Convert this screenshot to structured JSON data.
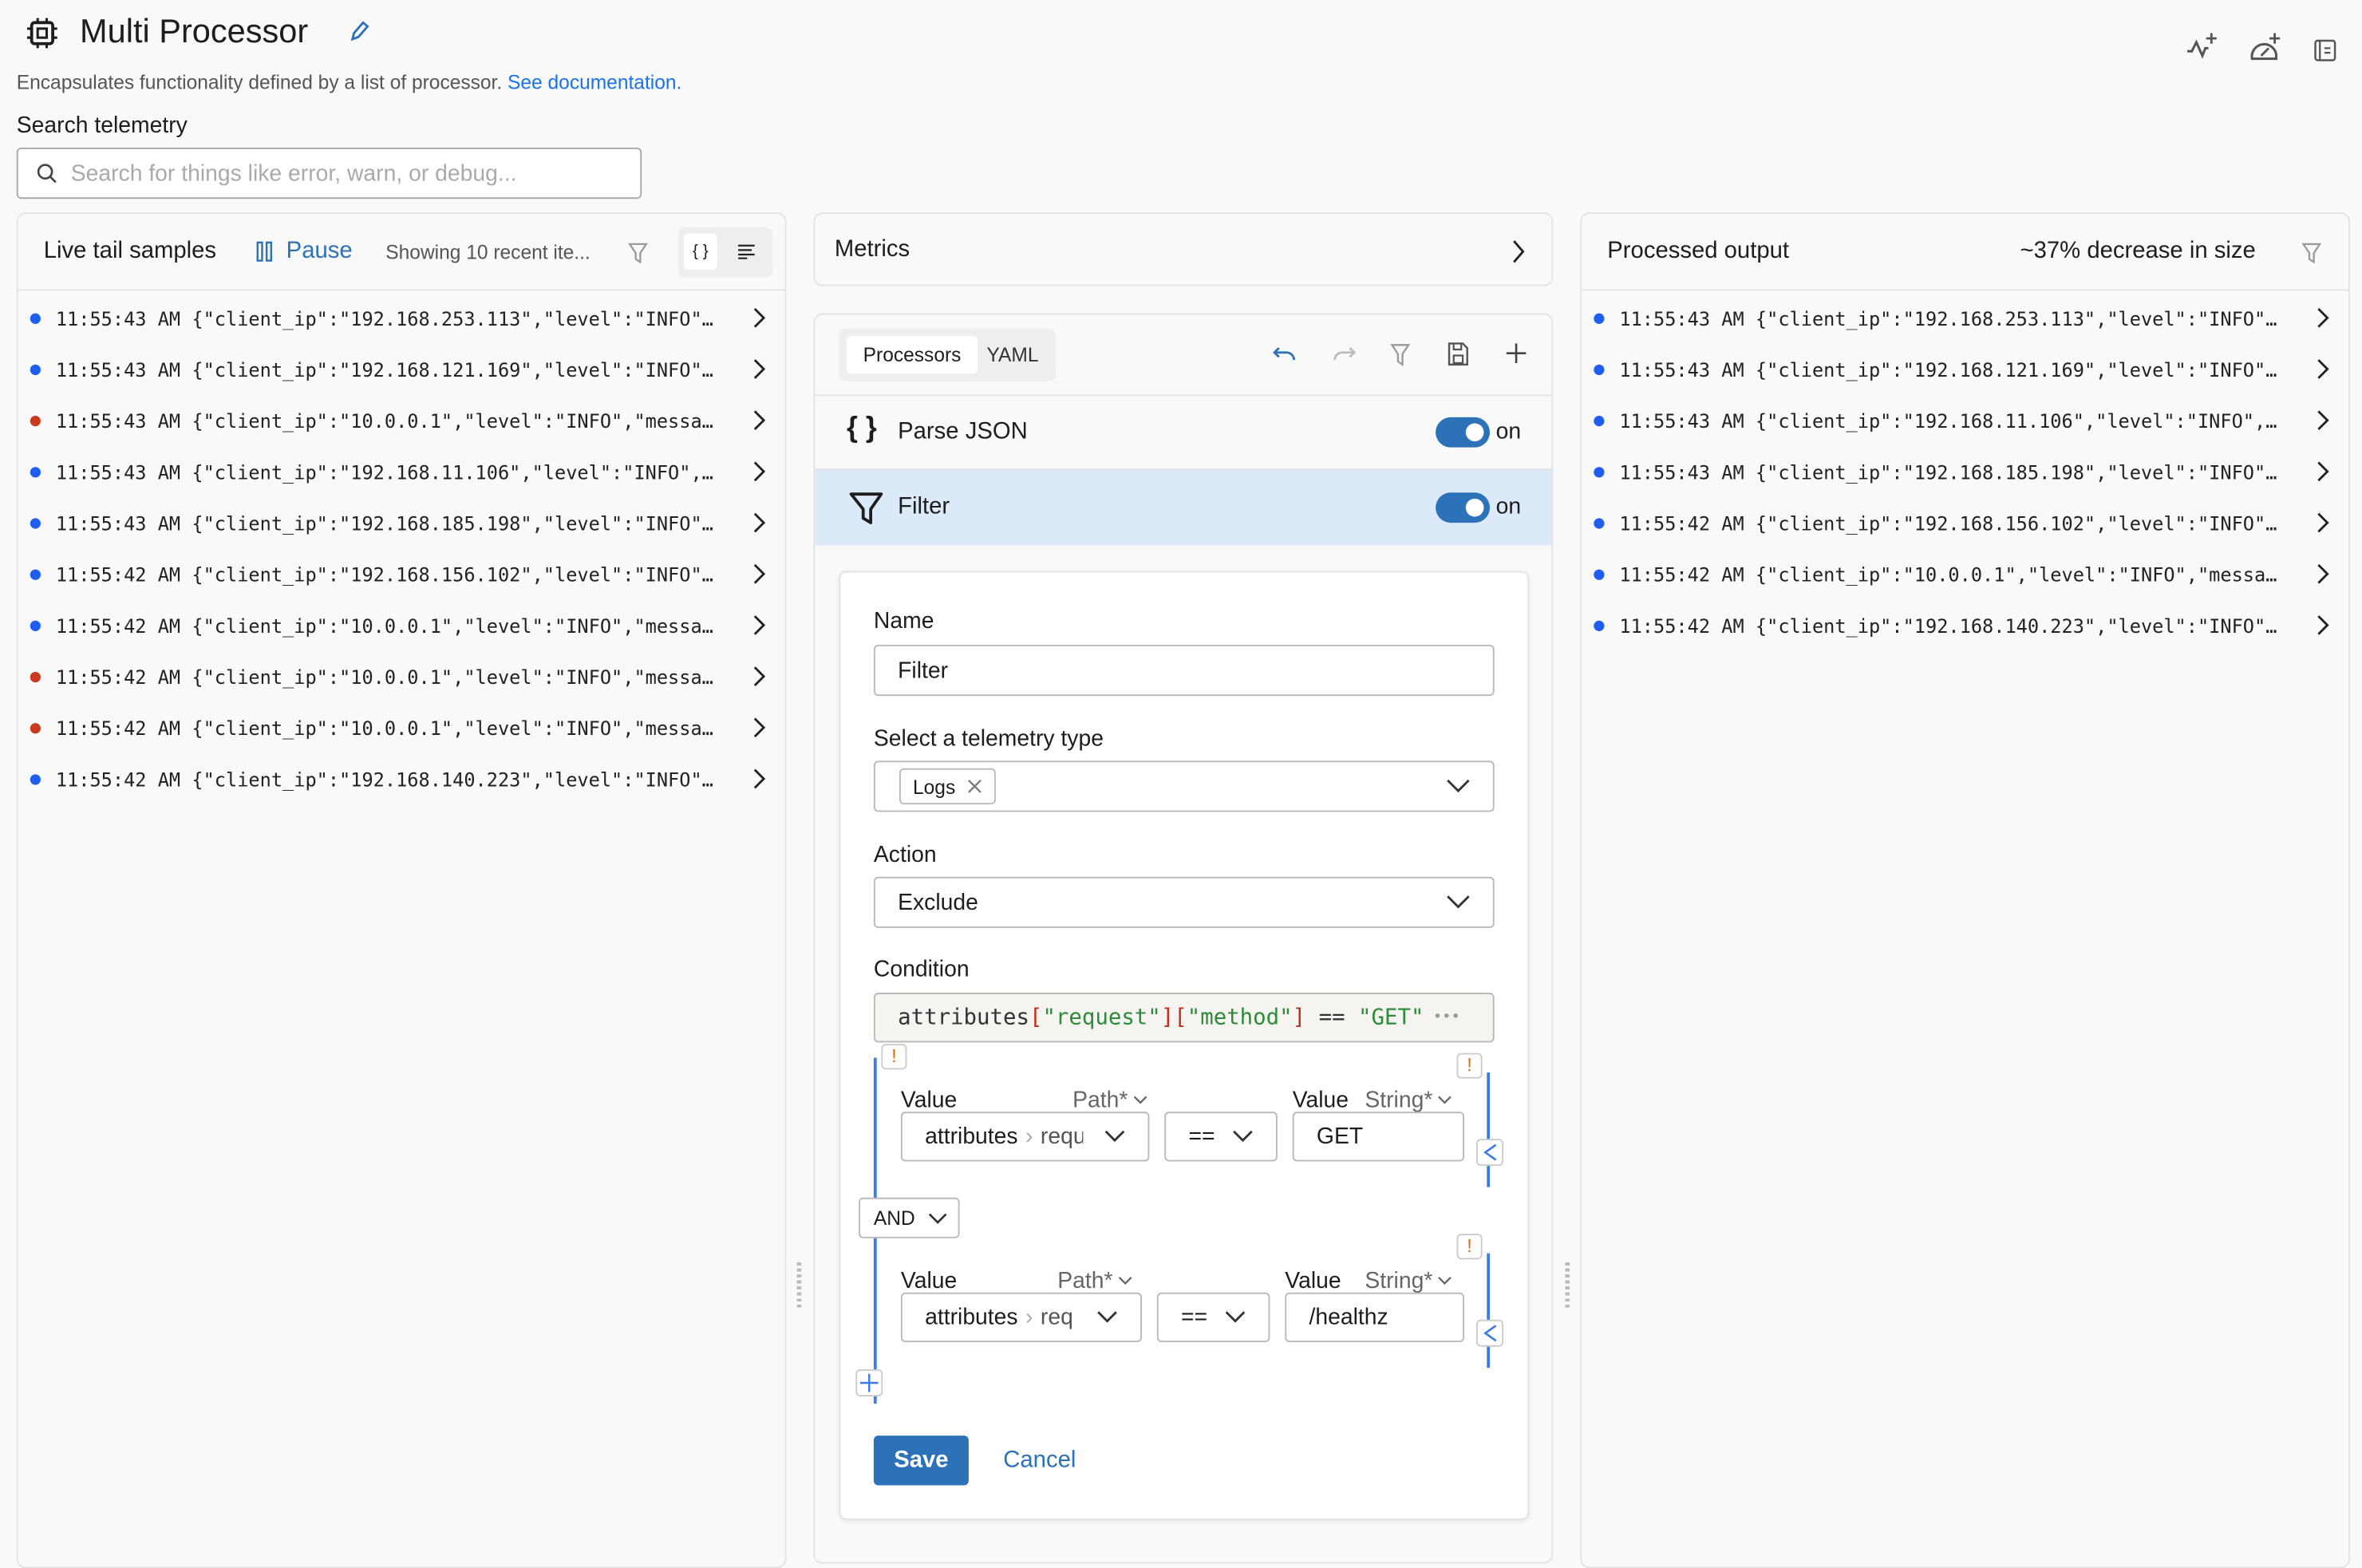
{
  "header": {
    "title": "Multi Processor",
    "description": "Encapsulates functionality defined by a list of processor.",
    "doc_link": "See documentation.",
    "icons": [
      "cpu-icon",
      "edit-pencil-icon",
      "add-activity-icon",
      "add-gauge-icon",
      "docs-book-icon"
    ]
  },
  "search": {
    "label": "Search telemetry",
    "placeholder": "Search for things like error, warn, or debug..."
  },
  "live_tail": {
    "title": "Live tail samples",
    "pause_label": "Pause",
    "showing": "Showing 10 recent ite...",
    "rows": [
      {
        "time": "11:55:43 AM",
        "text": "{\"client_ip\":\"192.168.253.113\",\"level\":\"INFO\"…",
        "status": "blue"
      },
      {
        "time": "11:55:43 AM",
        "text": "{\"client_ip\":\"192.168.121.169\",\"level\":\"INFO\"…",
        "status": "blue"
      },
      {
        "time": "11:55:43 AM",
        "text": "{\"client_ip\":\"10.0.0.1\",\"level\":\"INFO\",\"messa…",
        "status": "red"
      },
      {
        "time": "11:55:43 AM",
        "text": "{\"client_ip\":\"192.168.11.106\",\"level\":\"INFO\",…",
        "status": "blue"
      },
      {
        "time": "11:55:43 AM",
        "text": "{\"client_ip\":\"192.168.185.198\",\"level\":\"INFO\"…",
        "status": "blue"
      },
      {
        "time": "11:55:42 AM",
        "text": "{\"client_ip\":\"192.168.156.102\",\"level\":\"INFO\"…",
        "status": "blue"
      },
      {
        "time": "11:55:42 AM",
        "text": "{\"client_ip\":\"10.0.0.1\",\"level\":\"INFO\",\"messa…",
        "status": "blue"
      },
      {
        "time": "11:55:42 AM",
        "text": "{\"client_ip\":\"10.0.0.1\",\"level\":\"INFO\",\"messa…",
        "status": "red"
      },
      {
        "time": "11:55:42 AM",
        "text": "{\"client_ip\":\"10.0.0.1\",\"level\":\"INFO\",\"messa…",
        "status": "red"
      },
      {
        "time": "11:55:42 AM",
        "text": "{\"client_ip\":\"192.168.140.223\",\"level\":\"INFO\"…",
        "status": "blue"
      }
    ]
  },
  "metrics": {
    "label": "Metrics"
  },
  "processors": {
    "tabs": [
      "Processors",
      "YAML"
    ],
    "active_tab": "Processors",
    "items": [
      {
        "name": "Parse JSON",
        "toggle": "on",
        "enabled": true
      },
      {
        "name": "Filter",
        "toggle": "on",
        "enabled": true,
        "selected": true
      }
    ]
  },
  "filter_form": {
    "name_label": "Name",
    "name_value": "Filter",
    "telemetry_label": "Select a telemetry type",
    "telemetry_tag": "Logs",
    "action_label": "Action",
    "action_value": "Exclude",
    "condition_label": "Condition",
    "condition_code": {
      "p1": "attributes",
      "b1": "[",
      "s1": "\"request\"",
      "b2": "][",
      "s2": "\"method\"",
      "b3": "]",
      "op": " == ",
      "s3": "\"GET\""
    },
    "conditions": [
      {
        "value_label": "Value",
        "path_type": "Path*",
        "path_root": "attributes",
        "path_rest": "requ",
        "operator": "==",
        "value_label2": "Value",
        "value_type": "String*",
        "value": "GET"
      },
      {
        "value_label": "Value",
        "path_type": "Path*",
        "path_root": "attributes",
        "path_rest": "req",
        "operator": "==",
        "value_label2": "Value",
        "value_type": "String*",
        "value": "/healthz"
      }
    ],
    "joiner": "AND",
    "warning_mark": "!",
    "save_label": "Save",
    "cancel_label": "Cancel"
  },
  "output": {
    "title": "Processed output",
    "size_note": "~37% decrease in size",
    "rows": [
      {
        "time": "11:55:43 AM",
        "text": "{\"client_ip\":\"192.168.253.113\",\"level\":\"INFO\"…",
        "status": "blue"
      },
      {
        "time": "11:55:43 AM",
        "text": "{\"client_ip\":\"192.168.121.169\",\"level\":\"INFO\"…",
        "status": "blue"
      },
      {
        "time": "11:55:43 AM",
        "text": "{\"client_ip\":\"192.168.11.106\",\"level\":\"INFO\",…",
        "status": "blue"
      },
      {
        "time": "11:55:43 AM",
        "text": "{\"client_ip\":\"192.168.185.198\",\"level\":\"INFO\"…",
        "status": "blue"
      },
      {
        "time": "11:55:42 AM",
        "text": "{\"client_ip\":\"192.168.156.102\",\"level\":\"INFO\"…",
        "status": "blue"
      },
      {
        "time": "11:55:42 AM",
        "text": "{\"client_ip\":\"10.0.0.1\",\"level\":\"INFO\",\"messa…",
        "status": "blue"
      },
      {
        "time": "11:55:42 AM",
        "text": "{\"client_ip\":\"192.168.140.223\",\"level\":\"INFO\"…",
        "status": "blue"
      }
    ]
  },
  "colors": {
    "accent": "#2b72b9",
    "link": "#1a73e8",
    "blue_dot": "#1f5ff0",
    "red_dot": "#c93a1f",
    "selected_bg": "#dce9f8",
    "warning": "#d96a00",
    "code_green": "#2e8b3a",
    "code_red": "#c0301c"
  }
}
